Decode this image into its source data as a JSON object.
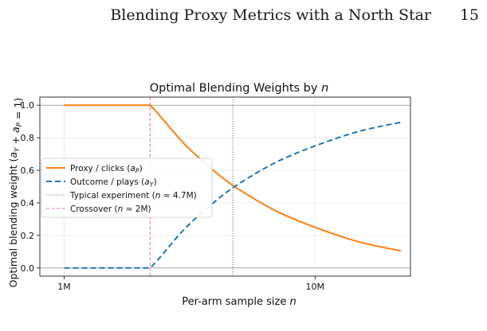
{
  "page": {
    "running_title": "Blending Proxy Metrics with a North Star",
    "page_number": "15"
  },
  "chart_data": {
    "type": "line",
    "title": "Optimal Blending Weights by n",
    "xlabel": "Per-arm sample size n",
    "ylabel": "Optimal blending weight (a_Y + a_P = 1)",
    "x_scale": "log",
    "xlim": [
      800000,
      24000000
    ],
    "ylim": [
      -0.05,
      1.05
    ],
    "x_ticks": [
      {
        "value": 1000000,
        "label": "1M"
      },
      {
        "value": 10000000,
        "label": "10M"
      }
    ],
    "y_ticks": [
      0.0,
      0.2,
      0.4,
      0.6,
      0.8,
      1.0
    ],
    "grid": true,
    "legend_position": "center-left",
    "series": [
      {
        "name": "Proxy / clicks (aP)",
        "color": "#ff7f0e",
        "style": "solid",
        "x": [
          1000000,
          2000000,
          2200000,
          3000000,
          4000000,
          5000000,
          7000000,
          10000000,
          15000000,
          22000000
        ],
        "y": [
          1.0,
          1.0,
          1.0,
          0.765,
          0.59,
          0.48,
          0.35,
          0.25,
          0.16,
          0.105
        ]
      },
      {
        "name": "Outcome / plays (aY)",
        "color": "#1f77b4",
        "style": "dashed",
        "x": [
          1000000,
          2000000,
          2200000,
          3000000,
          4000000,
          5000000,
          7000000,
          10000000,
          15000000,
          22000000
        ],
        "y": [
          0.0,
          0.0,
          0.0,
          0.235,
          0.41,
          0.52,
          0.65,
          0.75,
          0.84,
          0.895
        ]
      }
    ],
    "vlines": [
      {
        "name": "Typical experiment (n ≈ 4.7M)",
        "x": 4700000,
        "color": "#808080",
        "style": "dotted"
      },
      {
        "name": "Crossover (n ≈ 2M)",
        "x": 2200000,
        "color": "#e377c2",
        "style": "dashed"
      }
    ],
    "hlines": [
      {
        "y": 0.0,
        "color": "#999999"
      },
      {
        "y": 1.0,
        "color": "#999999"
      }
    ]
  }
}
